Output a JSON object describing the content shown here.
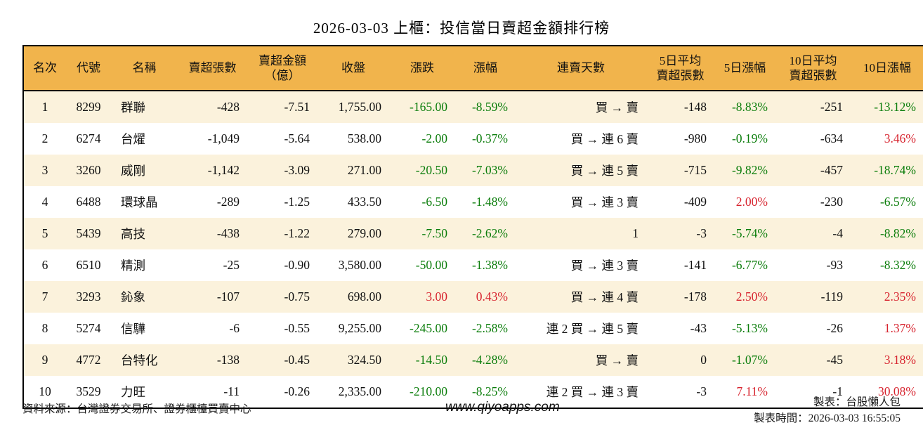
{
  "title": "2026-03-03 上櫃：投信當日賣超金額排行榜",
  "colors": {
    "header_bg": "#f1b44c",
    "row_stripe": "#fbf2dc",
    "row_plain": "#ffffff",
    "down_green": "#0b7d0b",
    "up_red": "#d7232e",
    "border": "#000000"
  },
  "table": {
    "headers": [
      "名次",
      "代號",
      "名稱",
      "賣超張數",
      "賣超金額\n（億）",
      "收盤",
      "漲跌",
      "漲幅",
      "連賣天數",
      "5日平均\n賣超張數",
      "5日漲幅",
      "10日平均\n賣超張數",
      "10日漲幅"
    ],
    "header_keys": [
      "rank",
      "code",
      "name",
      "sell_shares",
      "sell_amount_100m",
      "close",
      "change",
      "change_pct",
      "sell_streak",
      "avg5_sell_shares",
      "pct5",
      "avg10_sell_shares",
      "pct10"
    ],
    "rows": [
      {
        "rank": "1",
        "code": "8299",
        "name": "群聯",
        "sell_shares": "-428",
        "sell_amount_100m": "-7.51",
        "close": "1,755.00",
        "change": "-165.00",
        "change_color": "green",
        "change_pct": "-8.59%",
        "change_pct_color": "green",
        "sell_streak": "買 → 賣",
        "avg5_sell_shares": "-148",
        "pct5": "-8.83%",
        "pct5_color": "green",
        "avg10_sell_shares": "-251",
        "pct10": "-13.12%",
        "pct10_color": "green"
      },
      {
        "rank": "2",
        "code": "6274",
        "name": "台燿",
        "sell_shares": "-1,049",
        "sell_amount_100m": "-5.64",
        "close": "538.00",
        "change": "-2.00",
        "change_color": "green",
        "change_pct": "-0.37%",
        "change_pct_color": "green",
        "sell_streak": "買 → 連 6 賣",
        "avg5_sell_shares": "-980",
        "pct5": "-0.19%",
        "pct5_color": "green",
        "avg10_sell_shares": "-634",
        "pct10": "3.46%",
        "pct10_color": "red"
      },
      {
        "rank": "3",
        "code": "3260",
        "name": "威剛",
        "sell_shares": "-1,142",
        "sell_amount_100m": "-3.09",
        "close": "271.00",
        "change": "-20.50",
        "change_color": "green",
        "change_pct": "-7.03%",
        "change_pct_color": "green",
        "sell_streak": "買 → 連 5 賣",
        "avg5_sell_shares": "-715",
        "pct5": "-9.82%",
        "pct5_color": "green",
        "avg10_sell_shares": "-457",
        "pct10": "-18.74%",
        "pct10_color": "green"
      },
      {
        "rank": "4",
        "code": "6488",
        "name": "環球晶",
        "sell_shares": "-289",
        "sell_amount_100m": "-1.25",
        "close": "433.50",
        "change": "-6.50",
        "change_color": "green",
        "change_pct": "-1.48%",
        "change_pct_color": "green",
        "sell_streak": "買 → 連 3 賣",
        "avg5_sell_shares": "-409",
        "pct5": "2.00%",
        "pct5_color": "red",
        "avg10_sell_shares": "-230",
        "pct10": "-6.57%",
        "pct10_color": "green"
      },
      {
        "rank": "5",
        "code": "5439",
        "name": "高技",
        "sell_shares": "-438",
        "sell_amount_100m": "-1.22",
        "close": "279.00",
        "change": "-7.50",
        "change_color": "green",
        "change_pct": "-2.62%",
        "change_pct_color": "green",
        "sell_streak": "1",
        "avg5_sell_shares": "-3",
        "pct5": "-5.74%",
        "pct5_color": "green",
        "avg10_sell_shares": "-4",
        "pct10": "-8.82%",
        "pct10_color": "green"
      },
      {
        "rank": "6",
        "code": "6510",
        "name": "精測",
        "sell_shares": "-25",
        "sell_amount_100m": "-0.90",
        "close": "3,580.00",
        "change": "-50.00",
        "change_color": "green",
        "change_pct": "-1.38%",
        "change_pct_color": "green",
        "sell_streak": "買 → 連 3 賣",
        "avg5_sell_shares": "-141",
        "pct5": "-6.77%",
        "pct5_color": "green",
        "avg10_sell_shares": "-93",
        "pct10": "-8.32%",
        "pct10_color": "green"
      },
      {
        "rank": "7",
        "code": "3293",
        "name": "鈊象",
        "sell_shares": "-107",
        "sell_amount_100m": "-0.75",
        "close": "698.00",
        "change": "3.00",
        "change_color": "red",
        "change_pct": "0.43%",
        "change_pct_color": "red",
        "sell_streak": "買 → 連 4 賣",
        "avg5_sell_shares": "-178",
        "pct5": "2.50%",
        "pct5_color": "red",
        "avg10_sell_shares": "-119",
        "pct10": "2.35%",
        "pct10_color": "red"
      },
      {
        "rank": "8",
        "code": "5274",
        "name": "信驊",
        "sell_shares": "-6",
        "sell_amount_100m": "-0.55",
        "close": "9,255.00",
        "change": "-245.00",
        "change_color": "green",
        "change_pct": "-2.58%",
        "change_pct_color": "green",
        "sell_streak": "連 2 買 → 連 5 賣",
        "avg5_sell_shares": "-43",
        "pct5": "-5.13%",
        "pct5_color": "green",
        "avg10_sell_shares": "-26",
        "pct10": "1.37%",
        "pct10_color": "red"
      },
      {
        "rank": "9",
        "code": "4772",
        "name": "台特化",
        "sell_shares": "-138",
        "sell_amount_100m": "-0.45",
        "close": "324.50",
        "change": "-14.50",
        "change_color": "green",
        "change_pct": "-4.28%",
        "change_pct_color": "green",
        "sell_streak": "買 → 賣",
        "avg5_sell_shares": "0",
        "pct5": "-1.07%",
        "pct5_color": "green",
        "avg10_sell_shares": "-45",
        "pct10": "3.18%",
        "pct10_color": "red"
      },
      {
        "rank": "10",
        "code": "3529",
        "name": "力旺",
        "sell_shares": "-11",
        "sell_amount_100m": "-0.26",
        "close": "2,335.00",
        "change": "-210.00",
        "change_color": "green",
        "change_pct": "-8.25%",
        "change_pct_color": "green",
        "sell_streak": "連 2 買 → 連 3 賣",
        "avg5_sell_shares": "-3",
        "pct5": "7.11%",
        "pct5_color": "red",
        "avg10_sell_shares": "-1",
        "pct10": "30.08%",
        "pct10_color": "red"
      }
    ]
  },
  "footer": {
    "source": "資料來源：台灣證券交易所、證券櫃檯買賣中心",
    "website": "www.qiyoapps.com",
    "maker": "製表：台股懶人包",
    "made_time": "製表時間：2026-03-03 16:55:05"
  }
}
